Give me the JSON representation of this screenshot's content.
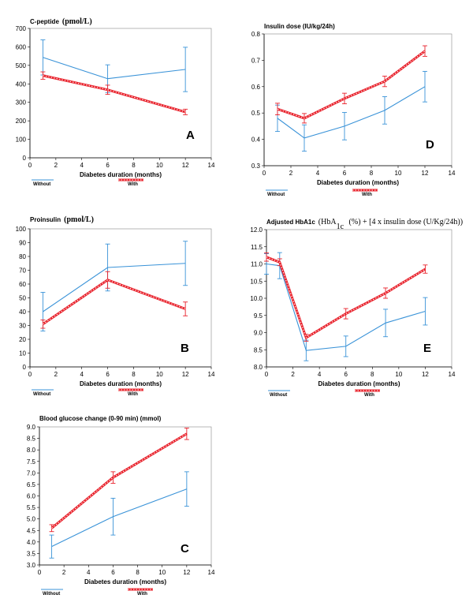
{
  "colors": {
    "without": "#3a93d8",
    "with": "#e8202a",
    "with_dots": "#ffffff",
    "axis": "#000000",
    "frame": "#888888"
  },
  "chart_data": [
    {
      "id": "A",
      "type": "line",
      "letter": "A",
      "title_parts": [
        {
          "text": "C-peptide",
          "style": "main"
        },
        {
          "text": "(pmol/L)",
          "style": "serif"
        }
      ],
      "xlabel": "Diabetes  duration  (months)",
      "xlim": [
        0,
        14
      ],
      "xticks": [
        0,
        2,
        4,
        6,
        8,
        10,
        12,
        14
      ],
      "ylim": [
        0,
        700
      ],
      "yticks": [
        0,
        100,
        200,
        300,
        400,
        500,
        600,
        700
      ],
      "ydecimals": 0,
      "legend": [
        "Without",
        "With"
      ],
      "series": [
        {
          "name": "Without",
          "x": [
            1,
            6,
            12
          ],
          "y": [
            543,
            428,
            478
          ],
          "err": [
            95,
            75,
            120
          ]
        },
        {
          "name": "With",
          "x": [
            1,
            6,
            12
          ],
          "y": [
            445,
            368,
            248
          ],
          "err": [
            20,
            25,
            15
          ]
        }
      ]
    },
    {
      "id": "B",
      "type": "line",
      "letter": "B",
      "title_parts": [
        {
          "text": "Proinsulin",
          "style": "main"
        },
        {
          "text": "(pmol/L)",
          "style": "serif"
        }
      ],
      "xlabel": "Diabetes  duration  (months)",
      "xlim": [
        0,
        14
      ],
      "xticks": [
        0,
        2,
        4,
        6,
        8,
        10,
        12,
        14
      ],
      "ylim": [
        0,
        100
      ],
      "yticks": [
        0,
        10,
        20,
        30,
        40,
        50,
        60,
        70,
        80,
        90,
        100
      ],
      "ydecimals": 0,
      "legend": [
        "Without",
        "With"
      ],
      "series": [
        {
          "name": "Without",
          "x": [
            1,
            6,
            12
          ],
          "y": [
            40,
            72,
            75
          ],
          "err": [
            14,
            17,
            16
          ]
        },
        {
          "name": "With",
          "x": [
            1,
            6,
            12
          ],
          "y": [
            31,
            63,
            42
          ],
          "err": [
            3,
            6,
            5
          ]
        }
      ]
    },
    {
      "id": "C",
      "type": "line",
      "letter": "C",
      "title_parts": [
        {
          "text": "Blood glucose change (0-90 min) (mmol)",
          "style": "main"
        }
      ],
      "xlabel": "Diabetes  duration  (months)",
      "xlim": [
        0,
        14
      ],
      "xticks": [
        0,
        2,
        4,
        6,
        8,
        10,
        12,
        14
      ],
      "ylim": [
        3.0,
        9.0
      ],
      "yticks": [
        3.0,
        3.5,
        4.0,
        4.5,
        5.0,
        5.5,
        6.0,
        6.5,
        7.0,
        7.5,
        8.0,
        8.5,
        9.0
      ],
      "ydecimals": 1,
      "legend": [
        "Without",
        "With"
      ],
      "series": [
        {
          "name": "Without",
          "x": [
            1,
            6,
            12
          ],
          "y": [
            3.8,
            5.1,
            6.3
          ],
          "err": [
            0.5,
            0.8,
            0.75
          ]
        },
        {
          "name": "With",
          "x": [
            1,
            6,
            12
          ],
          "y": [
            4.6,
            6.8,
            8.7
          ],
          "err": [
            0.15,
            0.25,
            0.25
          ]
        }
      ]
    },
    {
      "id": "D",
      "type": "line",
      "letter": "D",
      "title_parts": [
        {
          "text": "Insulin dose (IU/kg/24h)",
          "style": "main"
        }
      ],
      "xlabel": "Diabetes  duration  (months)",
      "xlim": [
        0,
        14
      ],
      "xticks": [
        0,
        2,
        4,
        6,
        8,
        10,
        12,
        14
      ],
      "ylim": [
        0.3,
        0.8
      ],
      "yticks": [
        0.3,
        0.4,
        0.5,
        0.6,
        0.7,
        0.8
      ],
      "ydecimals": 1,
      "legend": [
        "Without",
        "With"
      ],
      "series": [
        {
          "name": "Without",
          "x": [
            1,
            3,
            6,
            9,
            12
          ],
          "y": [
            0.48,
            0.405,
            0.45,
            0.51,
            0.6
          ],
          "err": [
            0.05,
            0.05,
            0.052,
            0.052,
            0.058
          ]
        },
        {
          "name": "With",
          "x": [
            1,
            3,
            6,
            9,
            12
          ],
          "y": [
            0.515,
            0.48,
            0.555,
            0.62,
            0.735
          ],
          "err": [
            0.022,
            0.018,
            0.02,
            0.02,
            0.02
          ]
        }
      ]
    },
    {
      "id": "E",
      "type": "line",
      "letter": "E",
      "title_parts": [
        {
          "text": "Adjusted  HbA1c",
          "style": "main"
        },
        {
          "text": "(HbA",
          "style": "serif-plain"
        },
        {
          "text": "1c",
          "style": "serif-sub"
        },
        {
          "text": " (%) + [4 x insulin dose (U/Kg/24h))",
          "style": "serif-plain"
        }
      ],
      "xlabel": "Diabetes  duration  (months)",
      "xlim": [
        0,
        14
      ],
      "xticks": [
        0,
        2,
        4,
        6,
        8,
        10,
        12,
        14
      ],
      "ylim": [
        8.0,
        12.0
      ],
      "yticks": [
        8.0,
        8.5,
        9.0,
        9.5,
        10.0,
        10.5,
        11.0,
        11.5,
        12.0
      ],
      "ydecimals": 1,
      "legend": [
        "Without",
        "With"
      ],
      "series": [
        {
          "name": "Without",
          "x": [
            0,
            1,
            3,
            6,
            9,
            12
          ],
          "y": [
            11.0,
            10.95,
            8.48,
            8.6,
            9.28,
            9.62
          ],
          "err": [
            0.3,
            0.38,
            0.3,
            0.3,
            0.4,
            0.4
          ]
        },
        {
          "name": "With",
          "x": [
            0,
            1,
            3,
            6,
            9,
            12
          ],
          "y": [
            11.2,
            11.05,
            8.85,
            9.55,
            10.15,
            10.85
          ],
          "err": [
            0.12,
            0.1,
            0.1,
            0.15,
            0.15,
            0.12
          ]
        }
      ]
    }
  ]
}
